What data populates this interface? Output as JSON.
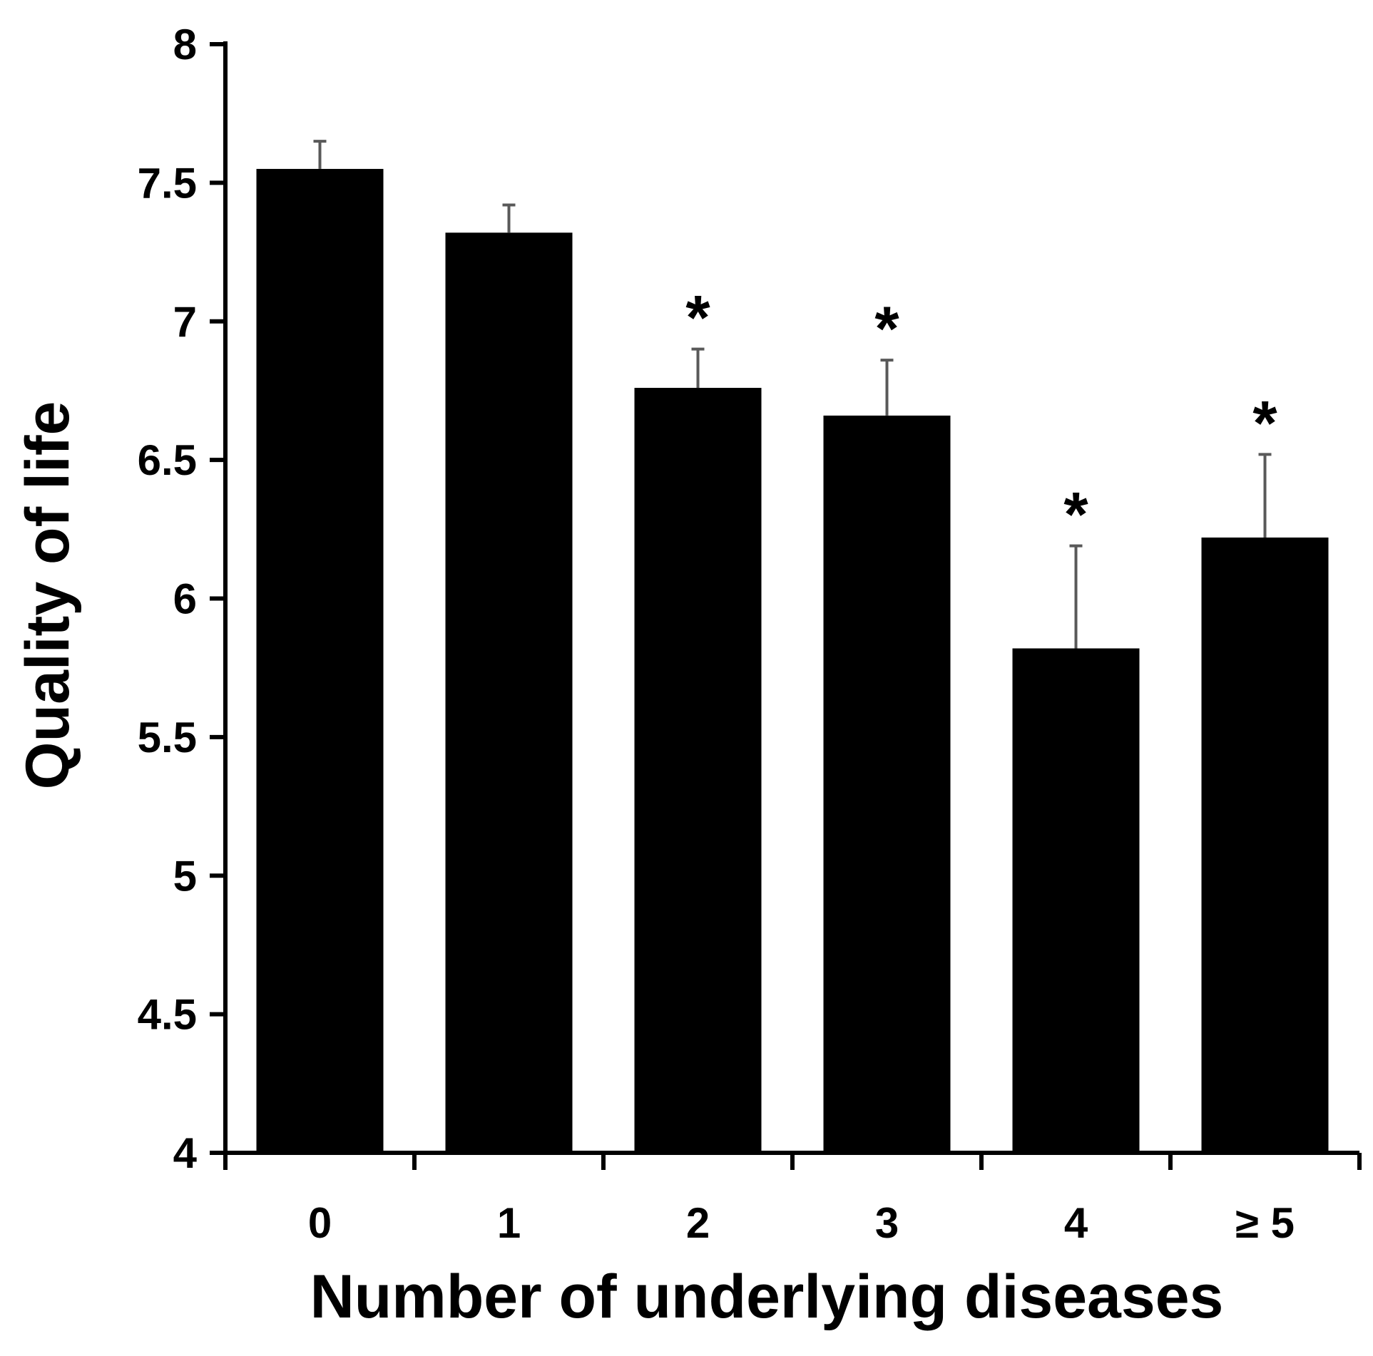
{
  "chart_data": {
    "type": "bar",
    "title": "",
    "xlabel": "Number of underlying diseases",
    "ylabel": "Quality of life",
    "categories": [
      "0",
      "1",
      "2",
      "3",
      "4",
      "≥ 5"
    ],
    "series": [
      {
        "values": [
          7.55,
          7.32,
          6.76,
          6.66,
          5.82,
          6.22
        ],
        "error_upper": [
          0.1,
          0.1,
          0.14,
          0.2,
          0.37,
          0.3
        ],
        "significance": [
          "",
          "",
          "*",
          "*",
          "*",
          "*"
        ]
      }
    ],
    "ylim": [
      4,
      8
    ],
    "yticks": [
      "4",
      "4.5",
      "5",
      "5.5",
      "6",
      "6.5",
      "7",
      "7.5",
      "8"
    ],
    "grid": false,
    "legend": "none",
    "colors": {
      "bar": "#000000",
      "error_bar": "#595959",
      "axis": "#000000",
      "background": "#ffffff"
    }
  }
}
